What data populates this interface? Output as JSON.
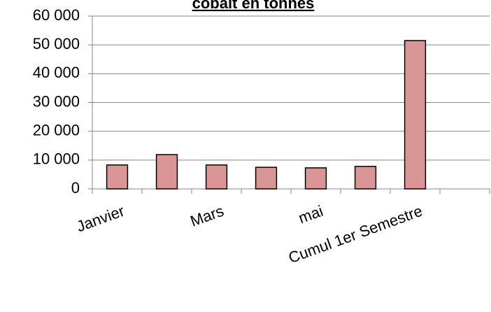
{
  "chart_data": {
    "type": "bar",
    "title": "cobalt en tonnes",
    "categories": [
      "Janvier",
      null,
      "Mars",
      null,
      "mai",
      null,
      "Cumul 1er Semestre",
      null
    ],
    "values": [
      8300,
      11900,
      8300,
      7500,
      7300,
      7800,
      51500,
      null
    ],
    "color": "#d99694",
    "ylim": [
      0,
      60000
    ],
    "yticks": [
      0,
      {
        "value": 10000,
        "label": "10 000"
      },
      {
        "value": 20000,
        "label": "20 000"
      },
      {
        "value": 30000,
        "label": "30 000"
      },
      {
        "value": 40000,
        "label": "40 000"
      },
      {
        "value": 50000,
        "label": "50 000"
      },
      {
        "value": 60000,
        "label": "60 000"
      }
    ],
    "grid": true
  }
}
